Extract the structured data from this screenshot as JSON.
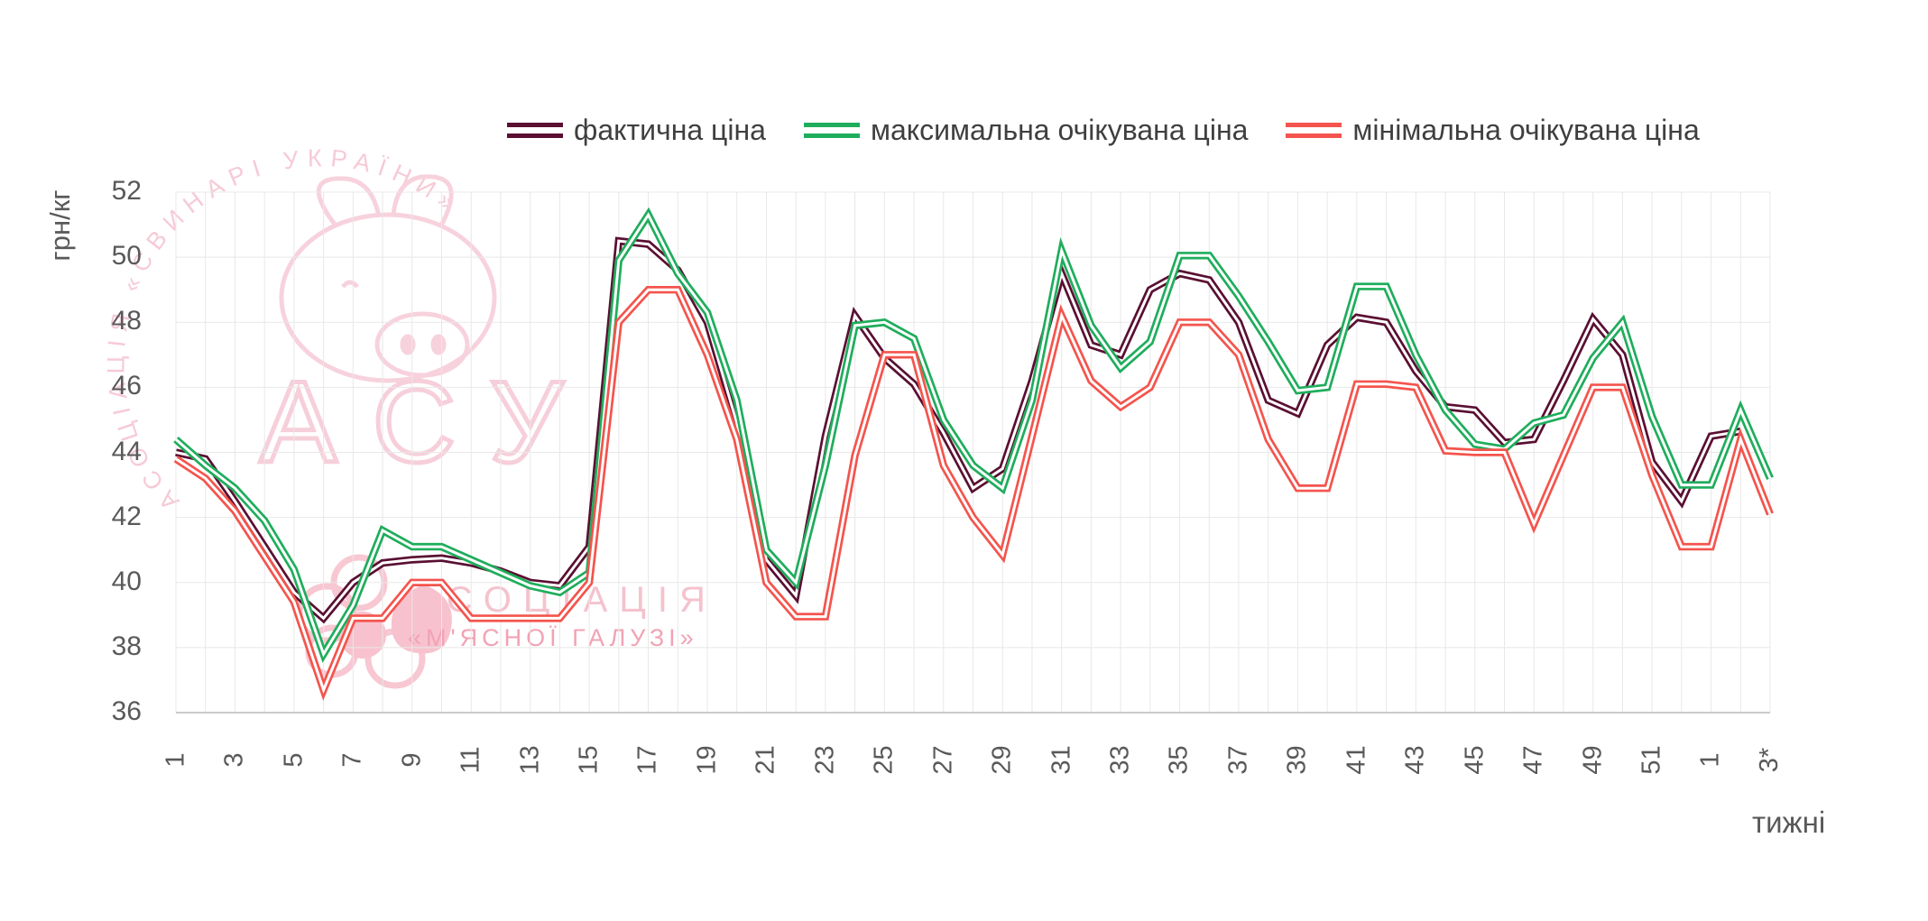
{
  "chart_data": {
    "type": "line",
    "title": "",
    "ylabel": "грн/кг",
    "xlabel": "тижні",
    "ylim": [
      36,
      52
    ],
    "ytick_step": 2,
    "grid": true,
    "legend_position": "top",
    "categories": [
      "1",
      "2",
      "3",
      "4",
      "5",
      "6",
      "7",
      "8",
      "9",
      "10",
      "11",
      "12",
      "13",
      "14",
      "15",
      "16",
      "17",
      "18",
      "19",
      "20",
      "21",
      "22",
      "23",
      "24",
      "25",
      "26",
      "27",
      "28",
      "29",
      "30",
      "31",
      "32",
      "33",
      "34",
      "35",
      "36",
      "37",
      "38",
      "39",
      "40",
      "41",
      "42",
      "43",
      "44",
      "45",
      "46",
      "47",
      "48",
      "49",
      "50",
      "51",
      "52",
      "1",
      "2",
      "3*"
    ],
    "series": [
      {
        "name": "фактична ціна",
        "color": "#5a0f32",
        "values": [
          44.0,
          43.8,
          42.5,
          41.1,
          39.7,
          38.9,
          40.0,
          40.6,
          40.7,
          40.75,
          40.6,
          40.35,
          40.0,
          39.9,
          41.1,
          50.5,
          50.4,
          49.6,
          48.0,
          44.9,
          40.7,
          39.6,
          44.5,
          48.2,
          46.9,
          46.1,
          44.6,
          42.9,
          43.5,
          46.2,
          49.5,
          47.3,
          47.0,
          49.0,
          49.5,
          49.3,
          48.0,
          45.6,
          45.2,
          47.3,
          48.15,
          48.0,
          46.5,
          45.4,
          45.3,
          44.3,
          44.4,
          46.2,
          48.1,
          47.0,
          43.7,
          42.5,
          44.5,
          44.65,
          null
        ]
      },
      {
        "name": "максимальна очікувана ціна",
        "color": "#1fad5c",
        "values": [
          44.4,
          43.6,
          42.9,
          41.9,
          40.4,
          37.8,
          39.3,
          41.6,
          41.1,
          41.1,
          40.7,
          40.3,
          39.9,
          39.7,
          40.3,
          49.9,
          51.3,
          49.5,
          48.3,
          45.6,
          41.0,
          40.0,
          43.6,
          47.9,
          48.0,
          47.5,
          45.0,
          43.6,
          42.9,
          45.6,
          50.2,
          47.9,
          46.6,
          47.4,
          50.05,
          50.05,
          48.8,
          47.4,
          45.9,
          46.0,
          49.1,
          49.1,
          47.0,
          45.3,
          44.25,
          44.1,
          44.9,
          45.15,
          46.9,
          48.0,
          45.1,
          43.0,
          43.0,
          45.3,
          43.2
        ]
      },
      {
        "name": "мінімальна очікувана ціна",
        "color": "#f4544d",
        "values": [
          43.8,
          43.2,
          42.2,
          40.8,
          39.4,
          36.7,
          38.9,
          38.9,
          40.0,
          40.0,
          38.9,
          38.9,
          38.9,
          38.9,
          40.0,
          48.0,
          49.0,
          49.0,
          47.0,
          44.4,
          40.0,
          38.95,
          38.95,
          43.9,
          47.0,
          47.0,
          43.6,
          42.0,
          40.85,
          44.5,
          48.2,
          46.2,
          45.4,
          46.0,
          48.0,
          48.0,
          47.0,
          44.4,
          42.9,
          42.9,
          46.1,
          46.1,
          46.0,
          44.05,
          44.0,
          44.0,
          41.8,
          43.9,
          46.0,
          46.0,
          43.3,
          41.1,
          41.1,
          44.4,
          42.1
        ]
      }
    ],
    "colors": {
      "grid": "#e8e8e8",
      "axis": "#b9b9b9",
      "tick_text": "#595959",
      "line_core": "#ffffff"
    }
  },
  "watermarks": {
    "circle_text": "АСОЦІАЦІЯ   «СВИНАРІ  УКРАЇНИ»",
    "acronym": "АСУ",
    "bottom_line1": "АСОЦІАЦІЯ",
    "bottom_line2": "«М'ЯСНОЇ ГАЛУЗІ»"
  }
}
